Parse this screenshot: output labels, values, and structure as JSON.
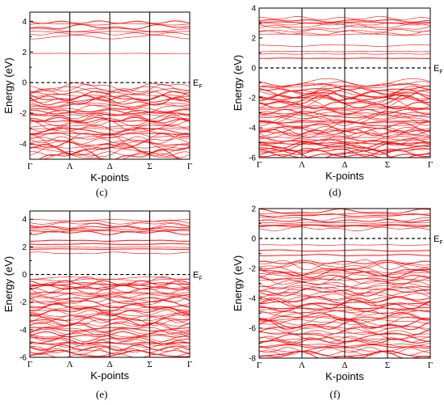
{
  "chart_data": [
    {
      "type": "line",
      "panel_label": "(c)",
      "xlabel": "K-points",
      "ylabel": "Energy (eV)",
      "fermi_label": "E",
      "fermi_subscript": "F",
      "fermi_level": 0,
      "x_ticks": [
        "Γ",
        "Λ",
        "Δ",
        "Σ",
        "Γ"
      ],
      "ylim": [
        -5,
        4.6
      ],
      "y_ticks": [
        -4,
        -2,
        0,
        2,
        4
      ],
      "series_color": "#ff0000",
      "band_groups": [
        {
          "from": -4.9,
          "to": -0.2,
          "count": 44,
          "amp": 0.55,
          "seed": 11
        },
        {
          "from": 1.85,
          "to": 1.95,
          "count": 1,
          "amp": 0.03,
          "seed": 3
        },
        {
          "from": 2.95,
          "to": 4.05,
          "count": 7,
          "amp": 0.25,
          "seed": 7
        }
      ]
    },
    {
      "type": "line",
      "panel_label": "(d)",
      "xlabel": "K-points",
      "ylabel": "Energy (eV)",
      "fermi_label": "E",
      "fermi_subscript": "F",
      "fermi_level": 0,
      "x_ticks": [
        "Γ",
        "Λ",
        "Δ",
        "Σ",
        "Γ"
      ],
      "ylim": [
        -6,
        4
      ],
      "y_ticks": [
        -6,
        -4,
        -2,
        0,
        2,
        4
      ],
      "series_color": "#ff0000",
      "band_groups": [
        {
          "from": -5.9,
          "to": -0.9,
          "count": 48,
          "amp": 0.55,
          "seed": 21
        },
        {
          "from": 0.6,
          "to": 1.6,
          "count": 4,
          "amp": 0.1,
          "seed": 5
        },
        {
          "from": 2.2,
          "to": 3.4,
          "count": 9,
          "amp": 0.25,
          "seed": 9
        }
      ]
    },
    {
      "type": "line",
      "panel_label": "(e)",
      "xlabel": "K-points",
      "ylabel": "Energy (eV)",
      "fermi_label": "E",
      "fermi_subscript": "F",
      "fermi_level": 0,
      "x_ticks": [
        "Γ",
        "Λ",
        "Δ",
        "Σ",
        "Γ"
      ],
      "ylim": [
        -6,
        4.6
      ],
      "y_ticks": [
        -6,
        -4,
        -2,
        0,
        2,
        4
      ],
      "series_color": "#ff0000",
      "band_groups": [
        {
          "from": -5.9,
          "to": -0.2,
          "count": 50,
          "amp": 0.55,
          "seed": 31
        },
        {
          "from": 1.5,
          "to": 2.6,
          "count": 5,
          "amp": 0.1,
          "seed": 13
        },
        {
          "from": 3.0,
          "to": 4.0,
          "count": 8,
          "amp": 0.25,
          "seed": 17
        }
      ]
    },
    {
      "type": "line",
      "panel_label": "(f)",
      "xlabel": "K-points",
      "ylabel": "Energy (eV)",
      "fermi_label": "E",
      "fermi_subscript": "F",
      "fermi_level": 0,
      "x_ticks": [
        "Γ",
        "Λ",
        "Δ",
        "Σ",
        "Γ"
      ],
      "ylim": [
        -8,
        2
      ],
      "y_ticks": [
        -8,
        -6,
        -4,
        -2,
        0,
        2
      ],
      "series_color": "#ff0000",
      "band_groups": [
        {
          "from": -7.9,
          "to": -1.5,
          "count": 54,
          "amp": 0.55,
          "seed": 41
        },
        {
          "from": -1.2,
          "to": -0.3,
          "count": 3,
          "amp": 0.08,
          "seed": 19
        },
        {
          "from": 0.6,
          "to": 1.9,
          "count": 9,
          "amp": 0.25,
          "seed": 23
        }
      ]
    }
  ]
}
